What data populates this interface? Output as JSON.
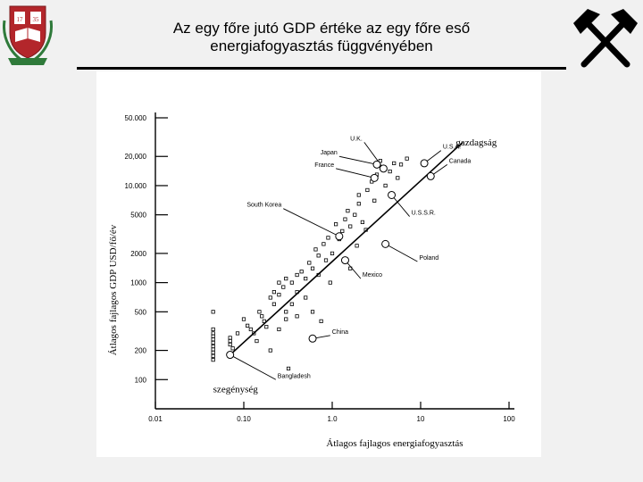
{
  "slide": {
    "title_line1": "Az egy főre jutó GDP értéke az egy főre eső",
    "title_line2": "energiafogyasztás függvényében"
  },
  "logo": {
    "year": "1735"
  },
  "colors": {
    "ink": "#000000",
    "crest_red": "#b3262b",
    "crest_green": "#2f7a3a",
    "background": "#f1f1f1",
    "figure_bg": "#ffffff"
  },
  "icons": {
    "left": "university-crest",
    "right": "crossed-hammers-icon"
  },
  "chart_data": {
    "type": "scatter",
    "xlabel": "Átlagos fajlagos energiafogyasztás",
    "ylabel": "Átlagos fajlagos GDP USD/fő/év",
    "x_scale": "log",
    "y_scale": "log",
    "xlim": [
      0.01,
      100
    ],
    "ylim": [
      50,
      50000
    ],
    "x_ticks": [
      {
        "value": 0.01,
        "label": "0.01"
      },
      {
        "value": 0.1,
        "label": "0.10"
      },
      {
        "value": 1,
        "label": "1.0"
      },
      {
        "value": 10,
        "label": "10"
      },
      {
        "value": 100,
        "label": "100"
      }
    ],
    "y_ticks": [
      {
        "value": 100,
        "label": "100"
      },
      {
        "value": 200,
        "label": "200"
      },
      {
        "value": 500,
        "label": "500"
      },
      {
        "value": 1000,
        "label": "1000"
      },
      {
        "value": 2000,
        "label": "2000"
      },
      {
        "value": 5000,
        "label": "5000"
      },
      {
        "value": 10000,
        "label": "10.000"
      },
      {
        "value": 20000,
        "label": "20,000"
      },
      {
        "value": 50000,
        "label": "50.000"
      }
    ],
    "grid": false,
    "annotations": [
      {
        "text": "gazdagság",
        "x": 25,
        "y": 26000
      },
      {
        "text": "szegénység",
        "x": 0.045,
        "y": 74
      }
    ],
    "trend_line": {
      "from": [
        0.07,
        180
      ],
      "to": [
        30,
        28000
      ]
    },
    "labeled_points": [
      {
        "name": "U.K.",
        "x": 3.8,
        "y": 15000,
        "label_x": 2.3,
        "label_y": 28000
      },
      {
        "name": "Japan",
        "x": 3.2,
        "y": 16500,
        "label_x": 1.2,
        "label_y": 20000
      },
      {
        "name": "France",
        "x": 3.0,
        "y": 12000,
        "label_x": 1.1,
        "label_y": 15000
      },
      {
        "name": "U.S.A.",
        "x": 11,
        "y": 17000,
        "label_x": 17,
        "label_y": 23000
      },
      {
        "name": "Canada",
        "x": 13,
        "y": 12500,
        "label_x": 20,
        "label_y": 16500
      },
      {
        "name": "South Korea",
        "x": 1.2,
        "y": 3000,
        "label_x": 0.28,
        "label_y": 5800
      },
      {
        "name": "U.S.S.R.",
        "x": 4.7,
        "y": 8000,
        "label_x": 7.5,
        "label_y": 4800
      },
      {
        "name": "Poland",
        "x": 4.0,
        "y": 2500,
        "label_x": 9.2,
        "label_y": 1650
      },
      {
        "name": "Mexico",
        "x": 1.4,
        "y": 1700,
        "label_x": 2.1,
        "label_y": 1100
      },
      {
        "name": "China",
        "x": 0.6,
        "y": 265,
        "label_x": 0.95,
        "label_y": 285
      },
      {
        "name": "Bangladesh",
        "x": 0.07,
        "y": 180,
        "label_x": 0.23,
        "label_y": 100
      }
    ],
    "points": [
      [
        0.045,
        500
      ],
      [
        0.045,
        330
      ],
      [
        0.045,
        300
      ],
      [
        0.045,
        280
      ],
      [
        0.045,
        260
      ],
      [
        0.045,
        240
      ],
      [
        0.045,
        220
      ],
      [
        0.045,
        205
      ],
      [
        0.045,
        190
      ],
      [
        0.045,
        175
      ],
      [
        0.045,
        160
      ],
      [
        0.07,
        270
      ],
      [
        0.07,
        250
      ],
      [
        0.07,
        230
      ],
      [
        0.075,
        210
      ],
      [
        0.085,
        300
      ],
      [
        0.1,
        420
      ],
      [
        0.11,
        360
      ],
      [
        0.12,
        330
      ],
      [
        0.13,
        300
      ],
      [
        0.14,
        250
      ],
      [
        0.15,
        500
      ],
      [
        0.16,
        450
      ],
      [
        0.17,
        400
      ],
      [
        0.18,
        350
      ],
      [
        0.2,
        700
      ],
      [
        0.2,
        200
      ],
      [
        0.22,
        600
      ],
      [
        0.22,
        800
      ],
      [
        0.25,
        750
      ],
      [
        0.25,
        330
      ],
      [
        0.28,
        900
      ],
      [
        0.3,
        500
      ],
      [
        0.3,
        420
      ],
      [
        0.32,
        130
      ],
      [
        0.35,
        1000
      ],
      [
        0.35,
        600
      ],
      [
        0.4,
        800
      ],
      [
        0.4,
        450
      ],
      [
        0.45,
        1300
      ],
      [
        0.5,
        1100
      ],
      [
        0.5,
        700
      ],
      [
        0.55,
        1600
      ],
      [
        0.6,
        1400
      ],
      [
        0.6,
        500
      ],
      [
        0.65,
        2200
      ],
      [
        0.7,
        1900
      ],
      [
        0.7,
        1200
      ],
      [
        0.75,
        400
      ],
      [
        0.8,
        2500
      ],
      [
        0.85,
        1700
      ],
      [
        0.9,
        2900
      ],
      [
        0.95,
        1000
      ],
      [
        1.0,
        2000
      ],
      [
        1.1,
        4000
      ],
      [
        1.2,
        2800
      ],
      [
        1.3,
        3400
      ],
      [
        1.4,
        4500
      ],
      [
        1.5,
        5500
      ],
      [
        1.6,
        3800
      ],
      [
        1.8,
        5000
      ],
      [
        2.0,
        6500
      ],
      [
        2.0,
        8000
      ],
      [
        2.2,
        4200
      ],
      [
        2.5,
        9000
      ],
      [
        2.8,
        11000
      ],
      [
        3.0,
        7000
      ],
      [
        3.2,
        13000
      ],
      [
        3.5,
        18000
      ],
      [
        4.0,
        10000
      ],
      [
        4.5,
        14000
      ],
      [
        5.0,
        17000
      ],
      [
        5.5,
        12000
      ],
      [
        6.0,
        16500
      ],
      [
        7.0,
        19000
      ],
      [
        1.6,
        1400
      ],
      [
        1.9,
        2400
      ],
      [
        2.4,
        3500
      ],
      [
        0.4,
        1200
      ],
      [
        0.3,
        1100
      ],
      [
        0.25,
        1000
      ]
    ]
  }
}
